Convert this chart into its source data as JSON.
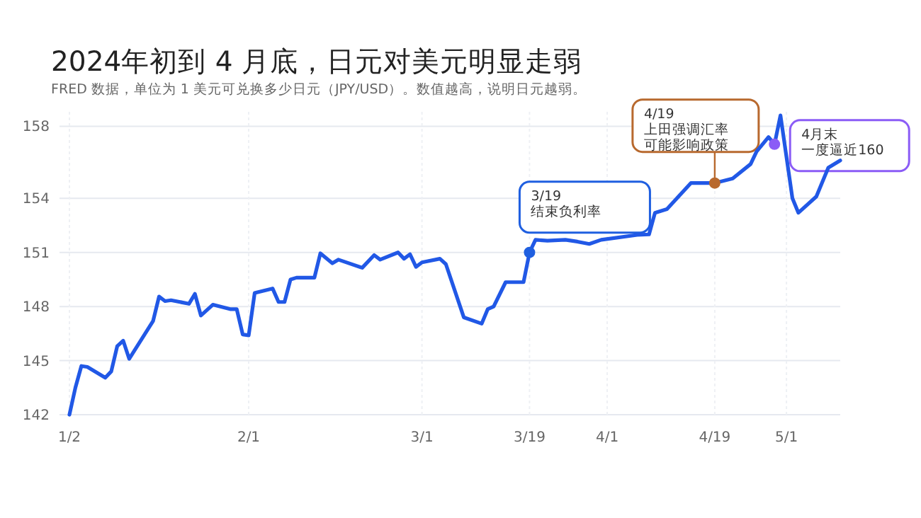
{
  "chart_data": {
    "type": "line",
    "title": "2024年初到 4 月底，日元对美元明显走弱",
    "subtitle": "FRED 数据，单位为 1 美元可兑换多少日元（JPY/USD）。数值越高，说明日元越弱。",
    "x": [
      "2024-01-02",
      "2024-01-03",
      "2024-01-04",
      "2024-01-05",
      "2024-01-08",
      "2024-01-09",
      "2024-01-10",
      "2024-01-11",
      "2024-01-12",
      "2024-01-16",
      "2024-01-17",
      "2024-01-18",
      "2024-01-19",
      "2024-01-22",
      "2024-01-23",
      "2024-01-24",
      "2024-01-26",
      "2024-01-29",
      "2024-01-30",
      "2024-01-31",
      "2024-02-01",
      "2024-02-02",
      "2024-02-05",
      "2024-02-06",
      "2024-02-07",
      "2024-02-08",
      "2024-02-09",
      "2024-02-12",
      "2024-02-13",
      "2024-02-15",
      "2024-02-16",
      "2024-02-20",
      "2024-02-22",
      "2024-02-23",
      "2024-02-26",
      "2024-02-27",
      "2024-02-28",
      "2024-02-29",
      "2024-03-01",
      "2024-03-04",
      "2024-03-05",
      "2024-03-08",
      "2024-03-11",
      "2024-03-12",
      "2024-03-13",
      "2024-03-15",
      "2024-03-18",
      "2024-03-19",
      "2024-03-20",
      "2024-03-22",
      "2024-03-25",
      "2024-03-27",
      "2024-03-29",
      "2024-03-31",
      "2024-04-06",
      "2024-04-08",
      "2024-04-09",
      "2024-04-11",
      "2024-04-15",
      "2024-04-19",
      "2024-04-22",
      "2024-04-25",
      "2024-04-26",
      "2024-04-28",
      "2024-04-29",
      "2024-04-30",
      "2024-05-02",
      "2024-05-03",
      "2024-05-06",
      "2024-05-08",
      "2024-05-10"
    ],
    "series": [
      {
        "color": "#2158e6",
        "values": [
          142.0,
          143.5,
          144.7,
          144.65,
          144.05,
          144.4,
          145.8,
          146.1,
          145.1,
          147.2,
          148.55,
          148.3,
          148.35,
          148.15,
          148.7,
          147.5,
          148.1,
          147.85,
          147.85,
          146.45,
          146.4,
          148.75,
          149.0,
          148.25,
          148.25,
          149.5,
          149.6,
          149.6,
          150.95,
          150.4,
          150.6,
          150.15,
          150.85,
          150.6,
          151.0,
          150.65,
          150.9,
          150.2,
          150.45,
          150.65,
          150.35,
          147.4,
          147.05,
          147.85,
          148.0,
          149.35,
          149.35,
          151.0,
          151.7,
          151.65,
          151.7,
          151.6,
          151.47,
          151.7,
          151.97,
          152.0,
          153.2,
          153.4,
          154.85,
          154.85,
          155.1,
          155.9,
          156.6,
          157.4,
          157.0,
          158.6,
          154.0,
          153.2,
          154.1,
          155.7,
          156.1
        ]
      }
    ],
    "xlim": [
      "2024-01-02",
      "2024-05-10"
    ],
    "xticks": [
      {
        "value": "2024-01-02",
        "label": "1/2"
      },
      {
        "value": "2024-02-01",
        "label": "2/1"
      },
      {
        "value": "2024-03-01",
        "label": "3/1"
      },
      {
        "value": "2024-03-19",
        "label": "3/19"
      },
      {
        "value": "2024-04-01",
        "label": "4/1"
      },
      {
        "value": "2024-04-19",
        "label": "4/19"
      },
      {
        "value": "2024-05-01",
        "label": "5/1"
      }
    ],
    "ylim": [
      142,
      158.8
    ],
    "yticks": [
      142,
      145,
      148,
      151,
      154,
      158
    ],
    "grid": true,
    "annotations": [
      {
        "text": "3/19\n结束负利率",
        "x": "2024-03-19",
        "y": 151.0
      },
      {
        "text": "4/19\n上田强调汇率",
        "x": "2024-04-19",
        "y": 154.85
      },
      "可能影响政策",
      {
        "text": "4月末",
        "x": "2024-04-29",
        "y": 157.0
      },
      "一度逼近160"
    ]
  }
}
